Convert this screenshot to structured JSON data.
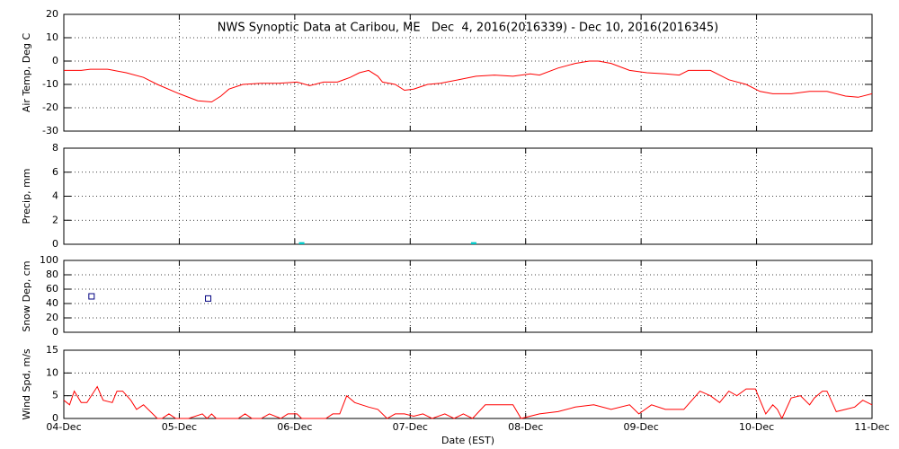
{
  "chart_data": [
    {
      "type": "line",
      "title": "NWS Synoptic Data at Caribou, ME   Dec  4, 2016(2016339) - Dec 10, 2016(2016345)",
      "y_label": "Air Temp, Deg C",
      "color": "#ff0000",
      "x": [
        0,
        0.15,
        0.23,
        0.38,
        0.54,
        0.69,
        0.81,
        1.0,
        1.16,
        1.28,
        1.36,
        1.43,
        1.55,
        1.71,
        1.86,
        2.02,
        2.13,
        2.25,
        2.37,
        2.48,
        2.56,
        2.64,
        2.72,
        2.76,
        2.87,
        2.95,
        3.03,
        3.15,
        3.26,
        3.42,
        3.57,
        3.73,
        3.89,
        4.04,
        4.12,
        4.28,
        4.43,
        4.55,
        4.63,
        4.74,
        4.9,
        5.05,
        5.21,
        5.33,
        5.41,
        5.6,
        5.76,
        5.91,
        6.03,
        6.14,
        6.3,
        6.46,
        6.61,
        6.77,
        6.88,
        7.0
      ],
      "values": [
        -4,
        -4,
        -3.5,
        -3.5,
        -5,
        -7,
        -10,
        -14,
        -17,
        -17.5,
        -15,
        -12,
        -10,
        -9.5,
        -9.5,
        -9,
        -10.5,
        -9,
        -9,
        -7,
        -5,
        -4,
        -6.5,
        -9,
        -10,
        -12.5,
        -12,
        -10,
        -9.5,
        -8,
        -6.5,
        -6,
        -6.5,
        -5.5,
        -6,
        -3,
        -1,
        0,
        0,
        -1,
        -4,
        -5,
        -5.5,
        -6,
        -4,
        -4,
        -8,
        -10,
        -13,
        -14,
        -14,
        -13,
        -13,
        -15,
        -15.5,
        -14
      ],
      "xlim": [
        0,
        7
      ],
      "xticks": [
        0,
        1,
        2,
        3,
        4,
        5,
        6,
        7
      ],
      "show_xtick_labels": false,
      "ylim": [
        -30,
        20
      ],
      "yticks": [
        -30,
        -20,
        -10,
        0,
        10,
        20
      ],
      "grid": true
    },
    {
      "type": "bar",
      "y_label": "Precip, mm",
      "color": "#00c8c8",
      "x": [
        2.06,
        3.55
      ],
      "values": [
        0.1,
        0.1
      ],
      "xlim": [
        0,
        7
      ],
      "xticks": [
        0,
        1,
        2,
        3,
        4,
        5,
        6,
        7
      ],
      "show_xtick_labels": false,
      "ylim": [
        0,
        8
      ],
      "yticks": [
        0,
        2,
        4,
        6,
        8
      ],
      "grid": true
    },
    {
      "type": "scatter",
      "y_label": "Snow Dep, cm",
      "color": "#000080",
      "x": [
        0.24,
        1.25
      ],
      "values": [
        50,
        47
      ],
      "xlim": [
        0,
        7
      ],
      "xticks": [
        0,
        1,
        2,
        3,
        4,
        5,
        6,
        7
      ],
      "show_xtick_labels": false,
      "ylim": [
        0,
        100
      ],
      "yticks": [
        0,
        20,
        40,
        60,
        80,
        100
      ],
      "grid": true
    },
    {
      "type": "line",
      "y_label": "Wind Spd, m/s",
      "x_label": "Date (EST)",
      "color": "#ff0000",
      "x": [
        0,
        0.05,
        0.09,
        0.15,
        0.2,
        0.29,
        0.34,
        0.42,
        0.46,
        0.51,
        0.58,
        0.63,
        0.69,
        0.77,
        0.81,
        0.85,
        0.91,
        0.97,
        1.08,
        1.2,
        1.24,
        1.28,
        1.32,
        1.39,
        1.51,
        1.57,
        1.63,
        1.71,
        1.78,
        1.88,
        1.94,
        2.02,
        2.06,
        2.13,
        2.27,
        2.33,
        2.39,
        2.45,
        2.52,
        2.64,
        2.72,
        2.8,
        2.87,
        2.95,
        3.03,
        3.11,
        3.19,
        3.3,
        3.38,
        3.46,
        3.54,
        3.65,
        3.89,
        3.96,
        4.12,
        4.28,
        4.43,
        4.59,
        4.74,
        4.9,
        4.98,
        5.09,
        5.21,
        5.37,
        5.51,
        5.6,
        5.68,
        5.76,
        5.83,
        5.91,
        5.99,
        6.03,
        6.08,
        6.14,
        6.18,
        6.22,
        6.3,
        6.38,
        6.46,
        6.5,
        6.57,
        6.61,
        6.69,
        6.77,
        6.85,
        6.92,
        7.0
      ],
      "values": [
        4,
        3,
        6,
        3.5,
        3.5,
        7,
        4,
        3.5,
        6,
        6,
        4,
        2,
        3,
        1,
        0,
        0,
        1,
        0,
        0,
        1,
        0,
        1,
        0,
        0,
        0,
        1,
        0,
        0,
        1,
        0,
        1,
        1,
        0,
        0,
        0,
        1,
        1,
        5,
        3.5,
        2.5,
        2,
        0,
        1,
        1,
        0.5,
        1,
        0,
        1,
        0,
        1,
        0,
        3,
        3,
        0,
        1,
        1.5,
        2.5,
        3,
        2,
        3,
        1,
        3,
        2,
        2,
        6,
        5,
        3.5,
        6,
        5,
        6.5,
        6.5,
        4,
        1,
        3,
        2,
        0,
        4.5,
        5,
        3,
        4.5,
        6,
        6,
        1.5,
        2,
        2.5,
        4,
        3
      ],
      "xlim": [
        0,
        7
      ],
      "xticks": [
        {
          "value": 0,
          "label": "04-Dec"
        },
        {
          "value": 1,
          "label": "05-Dec"
        },
        {
          "value": 2,
          "label": "06-Dec"
        },
        {
          "value": 3,
          "label": "07-Dec"
        },
        {
          "value": 4,
          "label": "08-Dec"
        },
        {
          "value": 5,
          "label": "09-Dec"
        },
        {
          "value": 6,
          "label": "10-Dec"
        },
        {
          "value": 7,
          "label": "11-Dec"
        }
      ],
      "show_xtick_labels": true,
      "ylim": [
        0,
        15
      ],
      "yticks": [
        0,
        5,
        10,
        15
      ],
      "grid": true
    }
  ]
}
